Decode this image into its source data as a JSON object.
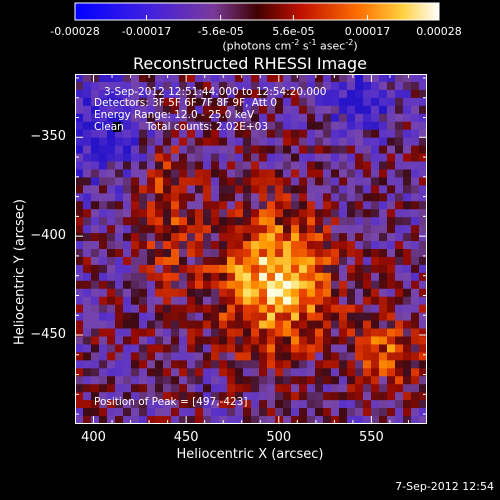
{
  "colorbar": {
    "tick_labels": [
      "-0.00028",
      "-0.00017",
      "-5.6e-05",
      "5.6e-05",
      "0.00017",
      "0.00028"
    ],
    "tick_values": [
      -0.00028,
      -0.00017,
      -5.6e-05,
      5.6e-05,
      0.00017,
      0.00028
    ],
    "units_text": "(photons cm",
    "units_exp1": "-2",
    "units_mid": " s",
    "units_exp2": "-1",
    "units_end": " asec",
    "units_exp3": "-2",
    "units_close": ")",
    "range": [
      -0.00028,
      0.00028
    ],
    "colors": [
      "#0000ff",
      "#5b2bd0",
      "#7a3d9a",
      "#a02020",
      "#e03000",
      "#ff8000",
      "#ffd040",
      "#ffffff"
    ]
  },
  "chart_data": {
    "type": "heatmap",
    "title": "Reconstructed RHESSI Image",
    "xlabel": "Heliocentric X (arcsec)",
    "ylabel": "Heliocentric Y (arcsec)",
    "xlim": [
      390,
      580
    ],
    "ylim": [
      -495,
      -318
    ],
    "x_ticks": [
      400,
      450,
      500,
      550
    ],
    "y_ticks": [
      -350,
      -400,
      -450
    ],
    "peak": [
      497,
      -423
    ],
    "value_range": [
      -0.00028,
      0.00028
    ]
  },
  "annotations": {
    "time_range": "3-Sep-2012 12:51:44.000 to 12:54:20.000",
    "detectors": "Detectors: 3F 5F 6F 7F 8F 9F, Att 0",
    "energy": "Energy Range: 12.0 - 25.0 keV",
    "clean": "Clean",
    "counts": "Total counts: 2.02E+03",
    "peak": "Position of Peak = [497,-423]"
  },
  "footer": {
    "date": "7-Sep-2012 12:54"
  }
}
